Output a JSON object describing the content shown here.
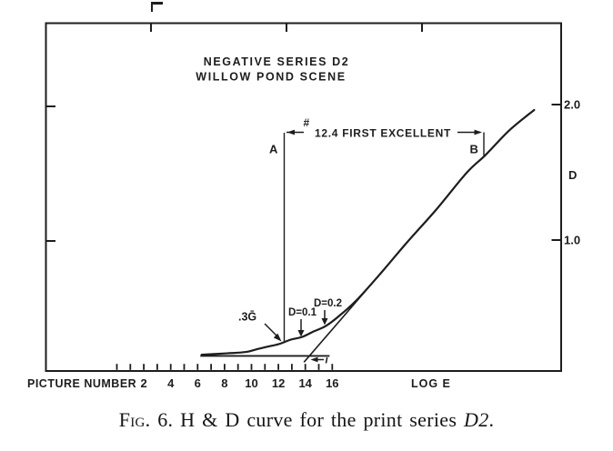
{
  "page": {
    "background": "#ffffff",
    "ink": "#1d1d1d"
  },
  "title": {
    "line1": "NEGATIVE SERIES D2",
    "line2": "WILLOW POND SCENE"
  },
  "axes": {
    "x_label_left": "PICTURE NUMBER",
    "x_label_right": "LOG E",
    "y_label": "D",
    "y_tick_labels": [
      "2.0",
      "1.0"
    ]
  },
  "annotations": {
    "hash": "#",
    "first_excellent": "12.4 FIRST EXCELLENT",
    "point_a": "A",
    "point_b": "B",
    "gradient": ".3Ḡ",
    "d_01": "D=0.1",
    "d_02": "D=0.2",
    "inertia": "i"
  },
  "caption": {
    "fig": "Fig. 6.",
    "body": "H & D curve for the print series",
    "series": "D2",
    "end": "."
  },
  "chart_data": {
    "type": "line",
    "title": "NEGATIVE SERIES D2 / WILLOW POND SCENE",
    "xlabel": "PICTURE NUMBER (lower scale), LOG E",
    "ylabel": "D",
    "x_axis": {
      "tick_min": 0,
      "tick_max": 16,
      "tick_step": 1,
      "labeled_ticks": [
        2,
        4,
        6,
        8,
        10,
        12,
        14,
        16
      ]
    },
    "y_axis": {
      "ticks": [
        1.0,
        2.0
      ],
      "label": "D"
    },
    "grid": false,
    "series": [
      {
        "name": "H & D curve",
        "points": [
          [
            6.3,
            0.16
          ],
          [
            8.2,
            0.17
          ],
          [
            9.6,
            0.18
          ],
          [
            10.4,
            0.2
          ],
          [
            11.25,
            0.22
          ],
          [
            12.1,
            0.24
          ],
          [
            12.9,
            0.27
          ],
          [
            13.75,
            0.29
          ],
          [
            14.6,
            0.33
          ],
          [
            15.5,
            0.37
          ],
          [
            16.45,
            0.44
          ],
          [
            17.8,
            0.56
          ],
          [
            19.7,
            0.77
          ],
          [
            21.5,
            0.98
          ],
          [
            23.75,
            1.23
          ],
          [
            26.0,
            1.5
          ],
          [
            27.4,
            1.63
          ],
          [
            29.15,
            1.81
          ],
          [
            31.0,
            1.96
          ]
        ]
      },
      {
        "name": "straight-line tangent",
        "points": [
          [
            19.7,
            0.77
          ],
          [
            13.9,
            0.105
          ]
        ]
      },
      {
        "name": "fog baseline",
        "points": [
          [
            6.2,
            0.151
          ],
          [
            15.8,
            0.151
          ]
        ]
      }
    ],
    "annotated_points": {
      "A_first_excellent": {
        "picture_number": 12.4,
        "density": 0.24
      },
      "B": {
        "picture_number": 27.3,
        "density": 1.63
      },
      "gradient_0.3G": {
        "picture_number": 12.1,
        "density": 0.24
      },
      "D_0.1": {
        "picture_number": 13.75,
        "density": 0.29
      },
      "D_0.2": {
        "picture_number": 15.5,
        "density": 0.37
      },
      "inertia_i": {
        "picture_number": 13.9,
        "density": 0.105
      }
    }
  }
}
